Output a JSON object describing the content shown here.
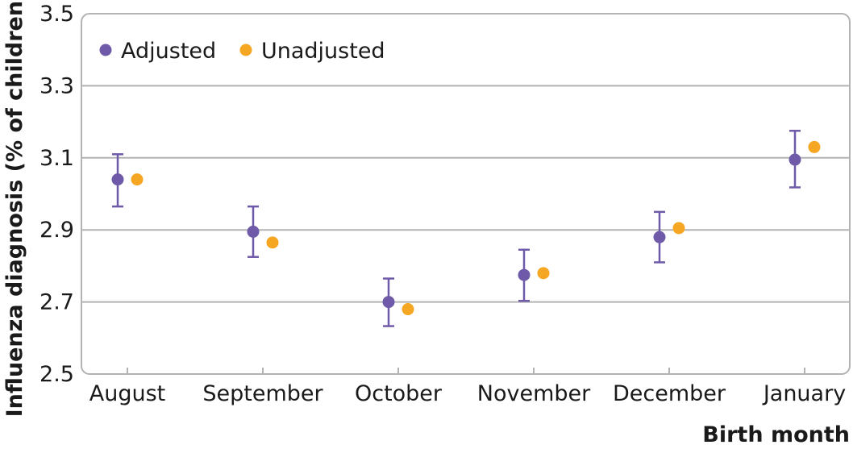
{
  "chart_data": {
    "type": "scatter",
    "categories": [
      "August",
      "September",
      "October",
      "November",
      "December",
      "January"
    ],
    "series": [
      {
        "name": "Adjusted",
        "color": "#6e5aa8",
        "values": [
          3.04,
          2.895,
          2.7,
          2.775,
          2.88,
          3.095
        ],
        "error_low": [
          2.965,
          2.825,
          2.633,
          2.703,
          2.81,
          3.018
        ],
        "error_high": [
          3.11,
          2.965,
          2.765,
          2.845,
          2.95,
          3.175
        ]
      },
      {
        "name": "Unadjusted",
        "color": "#f5a623",
        "values": [
          3.04,
          2.865,
          2.68,
          2.78,
          2.905,
          3.13
        ]
      }
    ],
    "ylabel": "Influenza diagnosis (% of children)",
    "xlabel": "Birth month",
    "ylim": [
      2.5,
      3.5
    ],
    "yticks": [
      "2.5",
      "2.7",
      "2.9",
      "3.1",
      "3.3",
      "3.5"
    ],
    "grid": "horizontal",
    "legend_position": "top-left"
  }
}
